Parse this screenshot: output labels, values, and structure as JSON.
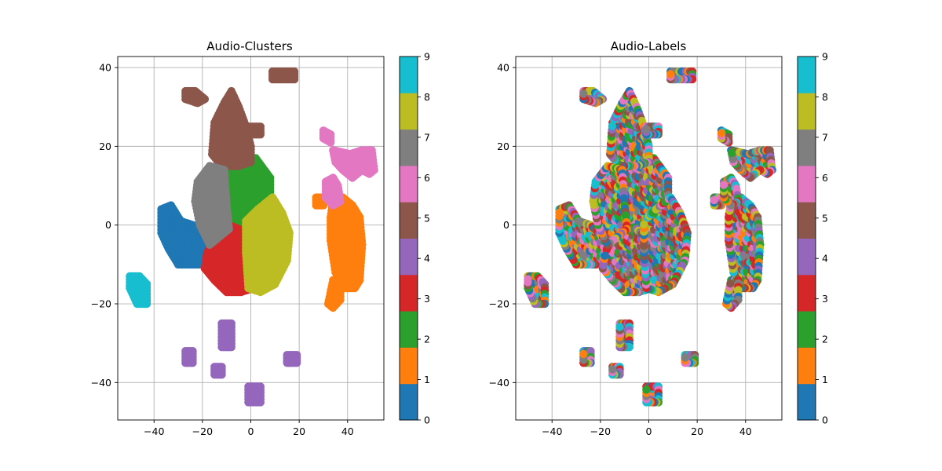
{
  "chart_data": [
    {
      "type": "scatter",
      "title": "Audio-Clusters",
      "xlabel": "",
      "ylabel": "",
      "xlim": [
        -55,
        55
      ],
      "ylim": [
        -49.5,
        42.8
      ],
      "xticks": [
        -40,
        -20,
        0,
        20,
        40
      ],
      "yticks": [
        -40,
        -20,
        0,
        20,
        40
      ],
      "grid": true,
      "colorbar": {
        "min": 0,
        "max": 9,
        "ticks": [
          0,
          1,
          2,
          3,
          4,
          5,
          6,
          7,
          8,
          9
        ],
        "colors": [
          "#1f77b4",
          "#ff7f0e",
          "#2ca02c",
          "#d62728",
          "#9467bd",
          "#8c564b",
          "#e377c2",
          "#7f7f7f",
          "#bcbd22",
          "#17becf"
        ]
      },
      "coloring": "by-cluster",
      "groups": [
        {
          "id": 0,
          "regions": [
            {
              "points": [
                [
                  -37,
                  4
                ],
                [
                  -33,
                  5
                ],
                [
                  -29,
                  1
                ],
                [
                  -24,
                  0
                ],
                [
                  -19,
                  -3
                ],
                [
                  -15,
                  -6
                ],
                [
                  -15,
                  -10
                ],
                [
                  -22,
                  -10
                ],
                [
                  -30,
                  -10
                ],
                [
                  -34,
                  -6
                ],
                [
                  -37,
                  -2
                ]
              ]
            }
          ]
        },
        {
          "id": 1,
          "regions": [
            {
              "points": [
                [
                  34,
                  6
                ],
                [
                  38,
                  7
                ],
                [
                  42,
                  5
                ],
                [
                  45,
                  2
                ],
                [
                  46,
                  -5
                ],
                [
                  45,
                  -14
                ],
                [
                  43,
                  -16
                ],
                [
                  38,
                  -16
                ],
                [
                  35,
                  -12
                ],
                [
                  33,
                  -4
                ],
                [
                  33,
                  2
                ]
              ]
            },
            {
              "points": [
                [
                  34,
                  -14
                ],
                [
                  37,
                  -14
                ],
                [
                  37,
                  -19
                ],
                [
                  34,
                  -21
                ],
                [
                  32,
                  -20
                ]
              ]
            },
            {
              "points": [
                [
                  27,
                  7
                ],
                [
                  30,
                  7
                ],
                [
                  30,
                  5
                ],
                [
                  27,
                  5
                ]
              ]
            }
          ]
        },
        {
          "id": 2,
          "regions": [
            {
              "points": [
                [
                  -11,
                  15
                ],
                [
                  -5,
                  17
                ],
                [
                  2,
                  17
                ],
                [
                  8,
                  12
                ],
                [
                  8,
                  5
                ],
                [
                  2,
                  2
                ],
                [
                  -6,
                  0
                ],
                [
                  -10,
                  3
                ],
                [
                  -12,
                  10
                ]
              ]
            }
          ]
        },
        {
          "id": 3,
          "regions": [
            {
              "points": [
                [
                  -18,
                  -7
                ],
                [
                  -14,
                  -2
                ],
                [
                  -9,
                  0
                ],
                [
                  -5,
                  -1
                ],
                [
                  0,
                  -4
                ],
                [
                  2,
                  -10
                ],
                [
                  1,
                  -16
                ],
                [
                  -4,
                  -17
                ],
                [
                  -10,
                  -17
                ],
                [
                  -15,
                  -14
                ],
                [
                  -19,
                  -11
                ]
              ]
            }
          ]
        },
        {
          "id": 4,
          "regions": [
            {
              "points": [
                [
                  -12,
                  -25
                ],
                [
                  -8,
                  -25
                ],
                [
                  -8,
                  -31
                ],
                [
                  -12,
                  -31
                ]
              ]
            },
            {
              "points": [
                [
                  -27,
                  -32
                ],
                [
                  -24,
                  -32
                ],
                [
                  -24,
                  -35
                ],
                [
                  -27,
                  -35
                ]
              ]
            },
            {
              "points": [
                [
                  -15,
                  -36
                ],
                [
                  -12,
                  -36
                ],
                [
                  -12,
                  -38
                ],
                [
                  -15,
                  -38
                ]
              ]
            },
            {
              "points": [
                [
                  -1,
                  -41
                ],
                [
                  4,
                  -41
                ],
                [
                  4,
                  -45
                ],
                [
                  -1,
                  -45
                ]
              ]
            },
            {
              "points": [
                [
                  15,
                  -33
                ],
                [
                  19,
                  -33
                ],
                [
                  19,
                  -35
                ],
                [
                  15,
                  -35
                ]
              ]
            }
          ]
        },
        {
          "id": 5,
          "regions": [
            {
              "points": [
                [
                  -15,
                  26
                ],
                [
                  -11,
                  31
                ],
                [
                  -8,
                  34
                ],
                [
                  -5,
                  30
                ],
                [
                  -2,
                  25
                ],
                [
                  0,
                  20
                ],
                [
                  0,
                  16
                ],
                [
                  -5,
                  15
                ],
                [
                  -12,
                  15
                ],
                [
                  -16,
                  18
                ]
              ]
            },
            {
              "points": [
                [
                  -27,
                  34
                ],
                [
                  -23,
                  34
                ],
                [
                  -19,
                  32
                ],
                [
                  -22,
                  31
                ],
                [
                  -27,
                  32
                ]
              ]
            },
            {
              "points": [
                [
                  -1,
                  25
                ],
                [
                  4,
                  25
                ],
                [
                  4,
                  23
                ],
                [
                  -1,
                  23
                ]
              ]
            },
            {
              "points": [
                [
                  9,
                  39
                ],
                [
                  18,
                  39
                ],
                [
                  18,
                  37
                ],
                [
                  9,
                  37
                ]
              ]
            }
          ]
        },
        {
          "id": 6,
          "regions": [
            {
              "points": [
                [
                  34,
                  19
                ],
                [
                  41,
                  18
                ],
                [
                  46,
                  19
                ],
                [
                  50,
                  19
                ],
                [
                  51,
                  14
                ],
                [
                  49,
                  13
                ],
                [
                  46,
                  14
                ],
                [
                  42,
                  12
                ],
                [
                  38,
                  14
                ],
                [
                  35,
                  16
                ]
              ]
            },
            {
              "points": [
                [
                  30,
                  24
                ],
                [
                  33,
                  23
                ],
                [
                  33,
                  21
                ],
                [
                  30,
                  22
                ]
              ]
            },
            {
              "points": [
                [
                  31,
                  11
                ],
                [
                  34,
                  12
                ],
                [
                  36,
                  10
                ],
                [
                  37,
                  6
                ],
                [
                  34,
                  5
                ],
                [
                  31,
                  7
                ]
              ]
            }
          ]
        },
        {
          "id": 7,
          "regions": [
            {
              "points": [
                [
                  -22,
                  11
                ],
                [
                  -17,
                  15
                ],
                [
                  -11,
                  14
                ],
                [
                  -10,
                  5
                ],
                [
                  -9,
                  -1
                ],
                [
                  -13,
                  -3
                ],
                [
                  -17,
                  -5
                ],
                [
                  -21,
                  0
                ],
                [
                  -23,
                  6
                ]
              ]
            }
          ]
        },
        {
          "id": 8,
          "regions": [
            {
              "points": [
                [
                  -2,
                  1
                ],
                [
                  3,
                  4
                ],
                [
                  9,
                  7
                ],
                [
                  13,
                  3
                ],
                [
                  16,
                  -2
                ],
                [
                  15,
                  -9
                ],
                [
                  10,
                  -15
                ],
                [
                  4,
                  -17
                ],
                [
                  -1,
                  -16
                ],
                [
                  -2,
                  -7
                ]
              ]
            }
          ]
        },
        {
          "id": 9,
          "regions": [
            {
              "points": [
                [
                  -50,
                  -13
                ],
                [
                  -46,
                  -13
                ],
                [
                  -43,
                  -15
                ],
                [
                  -43,
                  -20
                ],
                [
                  -47,
                  -20
                ],
                [
                  -50,
                  -16
                ]
              ]
            }
          ]
        }
      ]
    },
    {
      "type": "scatter",
      "title": "Audio-Labels",
      "xlabel": "",
      "ylabel": "",
      "xlim": [
        -55,
        55
      ],
      "ylim": [
        -49.5,
        42.8
      ],
      "xticks": [
        -40,
        -20,
        0,
        20,
        40
      ],
      "yticks": [
        -40,
        -20,
        0,
        20,
        40
      ],
      "grid": true,
      "colorbar": {
        "min": 0,
        "max": 9,
        "ticks": [
          0,
          1,
          2,
          3,
          4,
          5,
          6,
          7,
          8,
          9
        ],
        "colors": [
          "#1f77b4",
          "#ff7f0e",
          "#2ca02c",
          "#d62728",
          "#9467bd",
          "#8c564b",
          "#e377c2",
          "#7f7f7f",
          "#bcbd22",
          "#17becf"
        ]
      },
      "coloring": "mixed-labels"
    }
  ]
}
